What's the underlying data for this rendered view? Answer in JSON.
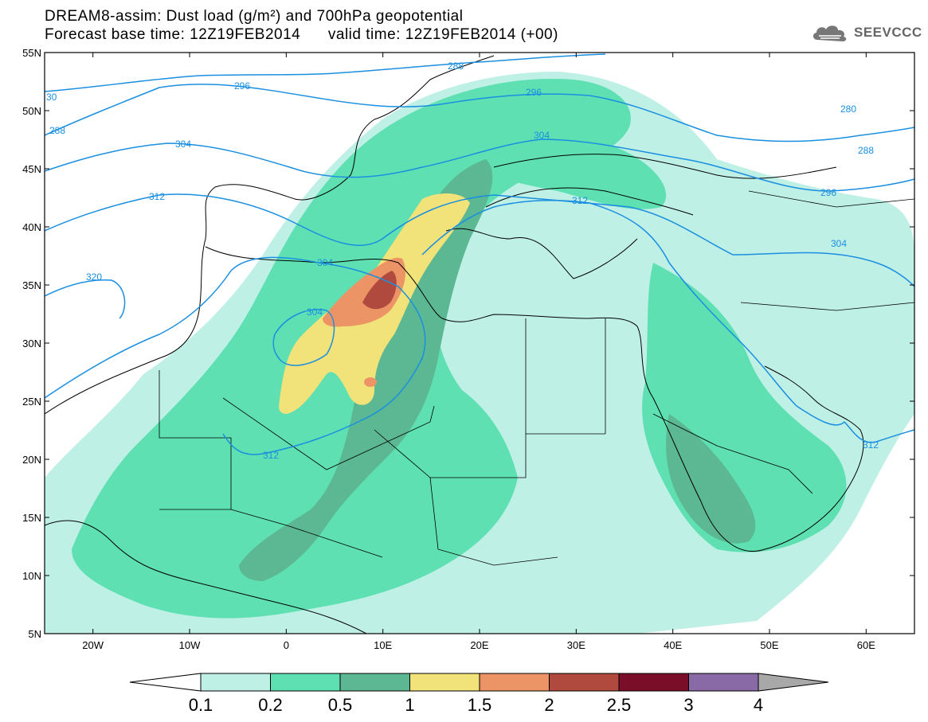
{
  "title": {
    "line1": "DREAM8-assim: Dust load (g/m²) and 700hPa geopotential",
    "line2": "Forecast base time: 12Z19FEB2014      valid time: 12Z19FEB2014 (+00)"
  },
  "logo": {
    "text": "SEEVCCC",
    "icon": "cloud-logo-icon"
  },
  "map": {
    "lat_labels": [
      "55N",
      "50N",
      "45N",
      "40N",
      "35N",
      "30N",
      "25N",
      "20N",
      "15N",
      "10N",
      "5N"
    ],
    "lon_labels": [
      "20W",
      "10W",
      "0",
      "10E",
      "20E",
      "30E",
      "40E",
      "50E",
      "60E"
    ],
    "lat_range": [
      5,
      55
    ],
    "lon_range": [
      -25,
      65
    ],
    "contour_labels": [
      "288",
      "296",
      "280",
      "304",
      "288",
      "296",
      "312",
      "304",
      "320",
      "304",
      "304",
      "312",
      "312",
      "296",
      "288",
      "30"
    ],
    "colors": {
      "land_border": "#000000",
      "contour": "#1a8fe0",
      "dust_01": "#bff0e6",
      "dust_02": "#5ee0b2",
      "dust_05": "#5cb892",
      "dust_1": "#f2e27a",
      "dust_15": "#ec9466",
      "dust_2": "#b04a3e",
      "dust_25": "#7a0e28",
      "dust_3": "#8a6aa6",
      "dust_4": "#a8a8a8"
    }
  },
  "colorbar": {
    "labels": [
      "0.1",
      "0.2",
      "0.5",
      "1",
      "1.5",
      "2",
      "2.5",
      "3",
      "4"
    ]
  }
}
